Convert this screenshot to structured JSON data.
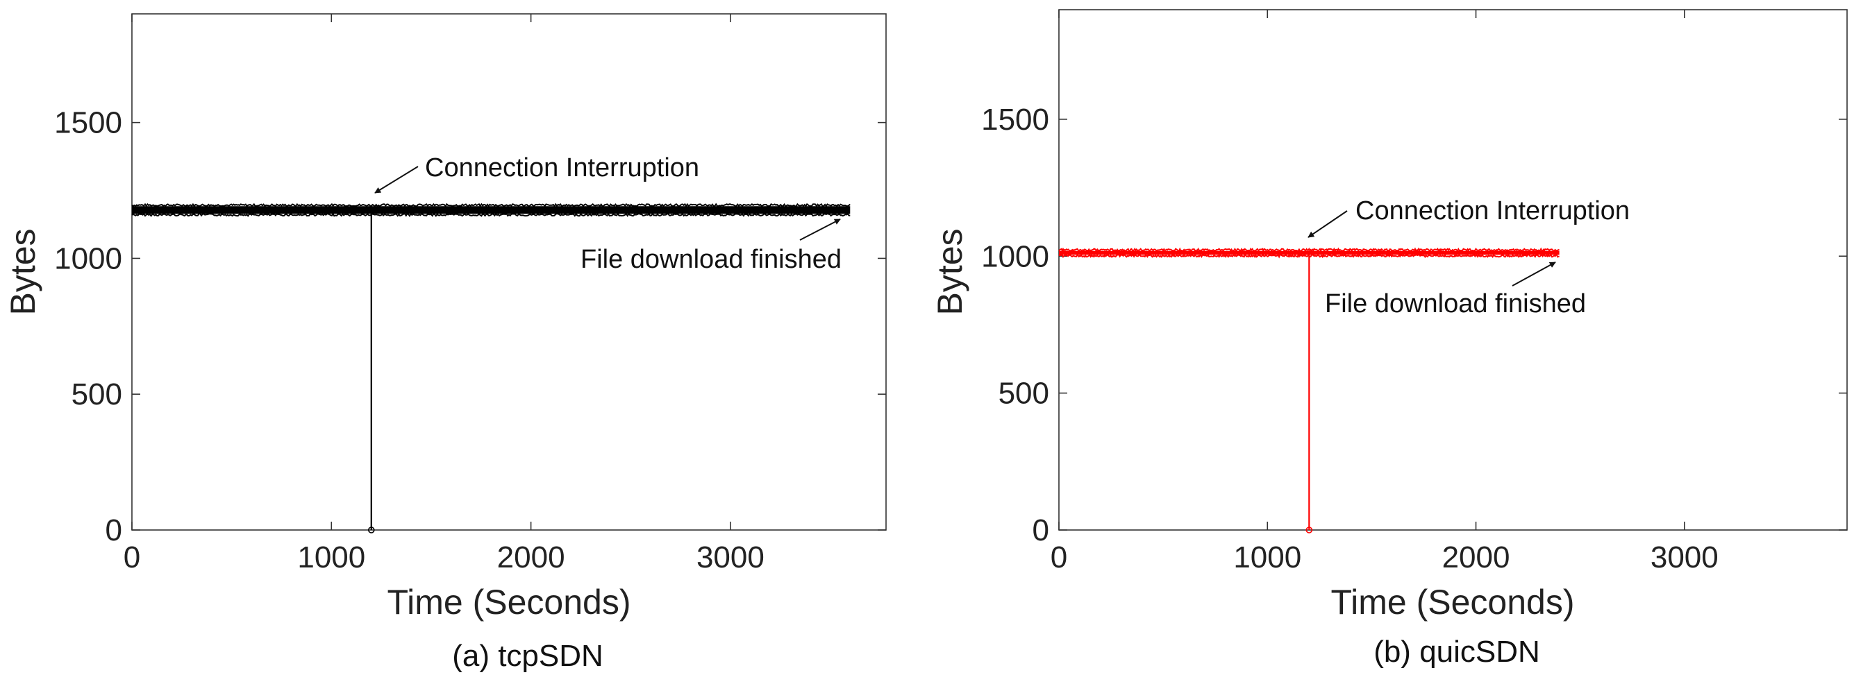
{
  "chart_data": [
    {
      "type": "line",
      "caption": "(a) tcpSDN",
      "xlabel": "Time (Seconds)",
      "ylabel": "Bytes",
      "xlim": [
        0,
        3780
      ],
      "ylim": [
        0,
        1900
      ],
      "xticks": [
        0,
        1000,
        2000,
        3000
      ],
      "yticks": [
        0,
        500,
        1000,
        1500
      ],
      "grid": false,
      "series": [
        {
          "color": "#000000",
          "line": {
            "start": 0,
            "end": 3600,
            "level": 1178,
            "jitter": 14
          },
          "interruption": {
            "x": 1200,
            "y": 0
          }
        }
      ],
      "annotations": [
        {
          "text": "Connection Interruption",
          "target": {
            "x": 1200,
            "y": 1178
          }
        },
        {
          "text": "File download finished",
          "target": {
            "x": 3600,
            "y": 1178
          }
        }
      ]
    },
    {
      "type": "line",
      "caption": "(b) quicSDN",
      "xlabel": "Time (Seconds)",
      "ylabel": "Bytes",
      "xlim": [
        0,
        3780
      ],
      "ylim": [
        0,
        1900
      ],
      "xticks": [
        0,
        1000,
        2000,
        3000
      ],
      "yticks": [
        0,
        500,
        1000,
        1500
      ],
      "grid": false,
      "series": [
        {
          "color": "#ff0000",
          "line": {
            "start": 0,
            "end": 2400,
            "level": 1012,
            "jitter": 7
          },
          "interruption": {
            "x": 1200,
            "y": 0
          }
        }
      ],
      "annotations": [
        {
          "text": "Connection Interruption",
          "target": {
            "x": 1200,
            "y": 1012
          }
        },
        {
          "text": "File download finished",
          "target": {
            "x": 2400,
            "y": 1012
          }
        }
      ]
    }
  ]
}
